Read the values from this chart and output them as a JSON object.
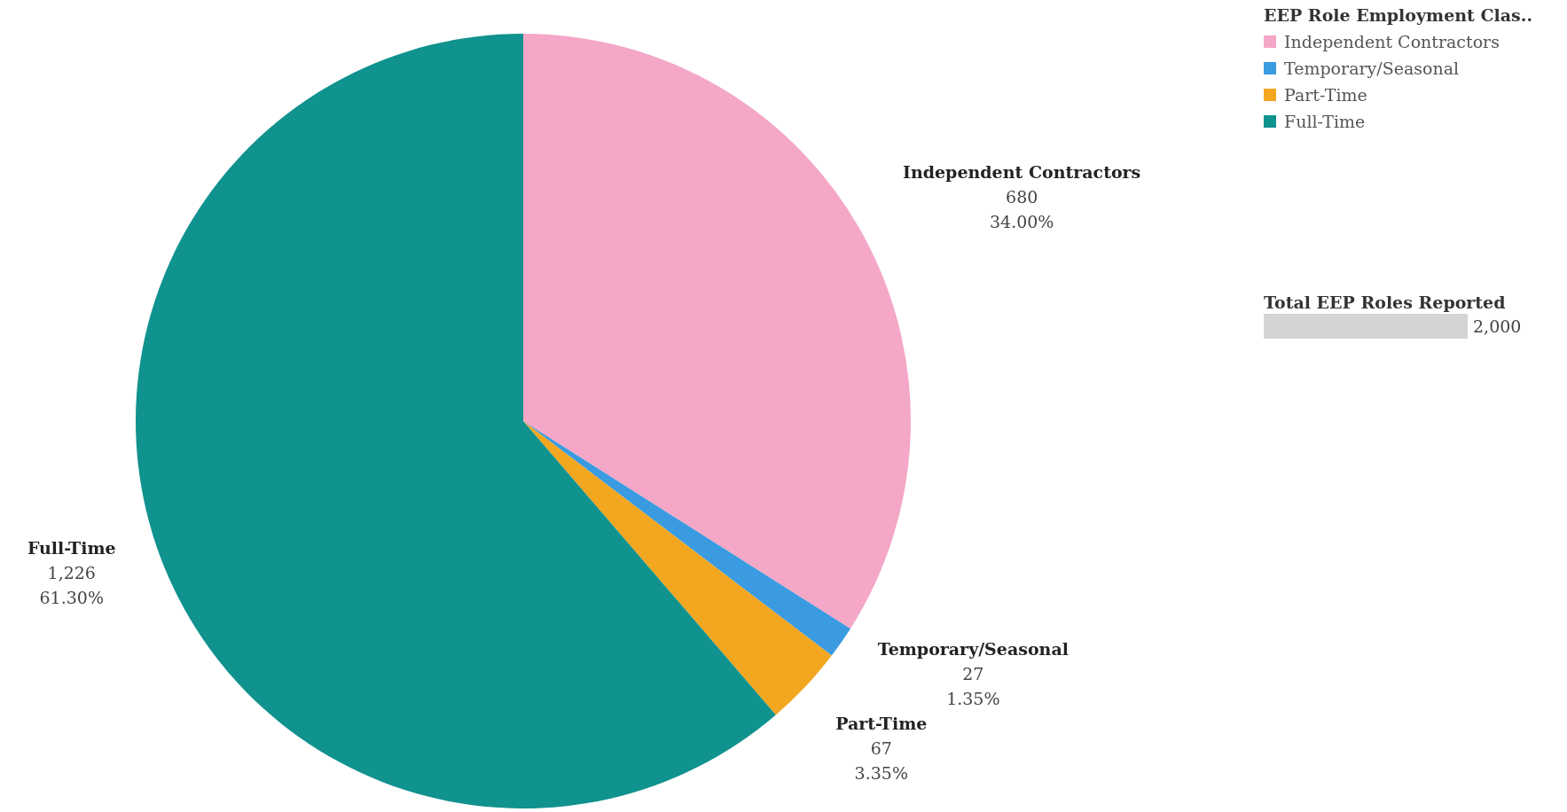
{
  "chart_data": {
    "type": "pie",
    "legend_title": "EEP Role Employment Clas..",
    "legend": "top right",
    "categories": [
      "Independent Contractors",
      "Temporary/Seasonal",
      "Part-Time",
      "Full-Time"
    ],
    "values": [
      680,
      27,
      67,
      1226
    ],
    "colors": [
      "#f4a7c6",
      "#3a9be0",
      "#f3a620",
      "#10928f"
    ],
    "value_labels": [
      "680\n34.00%",
      "27\n1.35%",
      "67\n3.35%",
      "1,226\n61.30%"
    ],
    "annotations": [
      "Total EEP Roles Reported",
      "2,000"
    ]
  }
}
